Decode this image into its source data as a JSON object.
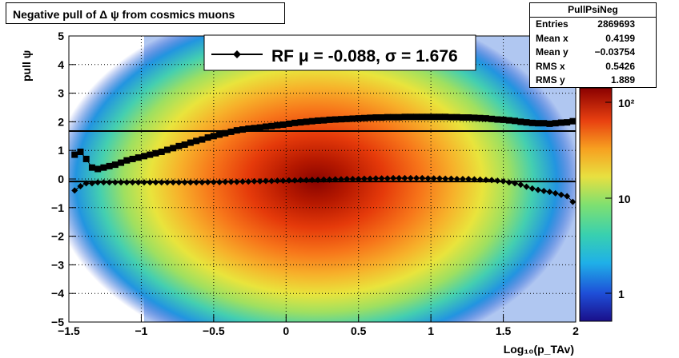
{
  "title": "Negative pull of Δ ψ from cosmics muons",
  "stats": {
    "name": "PullPsiNeg",
    "rows": [
      {
        "key": "Entries",
        "value": "2869693"
      },
      {
        "key": "Mean x",
        "value": "0.4199"
      },
      {
        "key": "Mean y",
        "value": "−0.03754"
      },
      {
        "key": "RMS x",
        "value": "0.5426"
      },
      {
        "key": "RMS y",
        "value": "1.889"
      }
    ]
  },
  "legend": {
    "label": "RF μ = -0.088, σ =   1.676"
  },
  "colors": {
    "marker": "#000000",
    "line": "#000000"
  },
  "colorbar": {
    "ticks": [
      "10²",
      "10",
      "1"
    ],
    "scale": "log",
    "palette": "rainbow"
  },
  "chart_data": {
    "type": "heatmap",
    "title": "Negative pull of Δ ψ from cosmics muons",
    "xlabel": "Log₁₀(p_TAv)",
    "ylabel": "pull ψ",
    "xlim": [
      -1.5,
      2
    ],
    "ylim": [
      -5,
      5
    ],
    "xticks": [
      "−1.5",
      "−1",
      "−0.5",
      "0",
      "0.5",
      "1",
      "1.5",
      "2"
    ],
    "yticks": [
      "−5",
      "−4",
      "−3",
      "−2",
      "−1",
      "0",
      "1",
      "2",
      "3",
      "4",
      "5"
    ],
    "grid": true,
    "legend_position": "top-center",
    "reference_lines": [
      {
        "name": "mean",
        "y": -0.088
      },
      {
        "name": "sigma",
        "y": 1.676
      }
    ],
    "series": [
      {
        "marker": "diamond",
        "x": [
          -1.46,
          -1.42,
          -1.38,
          -1.34,
          -1.3,
          -1.26,
          -1.22,
          -1.18,
          -1.14,
          -1.1,
          -1.06,
          -1.02,
          -0.98,
          -0.94,
          -0.9,
          -0.86,
          -0.82,
          -0.78,
          -0.74,
          -0.7,
          -0.66,
          -0.62,
          -0.58,
          -0.54,
          -0.5,
          -0.46,
          -0.42,
          -0.38,
          -0.34,
          -0.3,
          -0.26,
          -0.22,
          -0.18,
          -0.14,
          -0.1,
          -0.06,
          -0.02,
          0.02,
          0.06,
          0.1,
          0.14,
          0.18,
          0.22,
          0.26,
          0.3,
          0.34,
          0.38,
          0.42,
          0.46,
          0.5,
          0.54,
          0.58,
          0.62,
          0.66,
          0.7,
          0.74,
          0.78,
          0.82,
          0.86,
          0.9,
          0.94,
          0.98,
          1.02,
          1.06,
          1.1,
          1.14,
          1.18,
          1.22,
          1.26,
          1.3,
          1.34,
          1.38,
          1.42,
          1.46,
          1.5,
          1.54,
          1.58,
          1.62,
          1.66,
          1.7,
          1.74,
          1.78,
          1.82,
          1.86,
          1.9,
          1.94,
          1.98
        ],
        "values": [
          -0.4,
          -0.25,
          -0.15,
          -0.15,
          -0.12,
          -0.12,
          -0.12,
          -0.12,
          -0.12,
          -0.12,
          -0.12,
          -0.12,
          -0.12,
          -0.12,
          -0.12,
          -0.12,
          -0.12,
          -0.12,
          -0.12,
          -0.12,
          -0.12,
          -0.12,
          -0.12,
          -0.11,
          -0.11,
          -0.11,
          -0.1,
          -0.1,
          -0.1,
          -0.09,
          -0.09,
          -0.08,
          -0.08,
          -0.07,
          -0.07,
          -0.06,
          -0.06,
          -0.05,
          -0.05,
          -0.04,
          -0.04,
          -0.03,
          -0.03,
          -0.02,
          -0.02,
          -0.01,
          -0.01,
          0.0,
          0.0,
          0.0,
          0.01,
          0.01,
          0.02,
          0.02,
          0.02,
          0.03,
          0.03,
          0.03,
          0.03,
          0.03,
          0.03,
          0.02,
          0.02,
          0.02,
          0.01,
          0.01,
          0.0,
          0.0,
          0.0,
          -0.01,
          -0.02,
          -0.03,
          -0.04,
          -0.06,
          -0.08,
          -0.12,
          -0.15,
          -0.2,
          -0.27,
          -0.33,
          -0.38,
          -0.42,
          -0.45,
          -0.5,
          -0.55,
          -0.6,
          -0.8
        ]
      },
      {
        "marker": "square",
        "x": [
          -1.46,
          -1.42,
          -1.38,
          -1.34,
          -1.3,
          -1.26,
          -1.22,
          -1.18,
          -1.14,
          -1.1,
          -1.06,
          -1.02,
          -0.98,
          -0.94,
          -0.9,
          -0.86,
          -0.82,
          -0.78,
          -0.74,
          -0.7,
          -0.66,
          -0.62,
          -0.58,
          -0.54,
          -0.5,
          -0.46,
          -0.42,
          -0.38,
          -0.34,
          -0.3,
          -0.26,
          -0.22,
          -0.18,
          -0.14,
          -0.1,
          -0.06,
          -0.02,
          0.02,
          0.06,
          0.1,
          0.14,
          0.18,
          0.22,
          0.26,
          0.3,
          0.34,
          0.38,
          0.42,
          0.46,
          0.5,
          0.54,
          0.58,
          0.62,
          0.66,
          0.7,
          0.74,
          0.78,
          0.82,
          0.86,
          0.9,
          0.94,
          0.98,
          1.02,
          1.06,
          1.1,
          1.14,
          1.18,
          1.22,
          1.26,
          1.3,
          1.34,
          1.38,
          1.42,
          1.46,
          1.5,
          1.54,
          1.58,
          1.62,
          1.66,
          1.7,
          1.74,
          1.78,
          1.82,
          1.86,
          1.9,
          1.94,
          1.98
        ],
        "values": [
          0.85,
          0.95,
          0.7,
          0.4,
          0.35,
          0.4,
          0.45,
          0.5,
          0.57,
          0.65,
          0.7,
          0.75,
          0.8,
          0.85,
          0.9,
          0.95,
          1.02,
          1.08,
          1.15,
          1.2,
          1.27,
          1.33,
          1.38,
          1.45,
          1.5,
          1.55,
          1.6,
          1.65,
          1.7,
          1.73,
          1.76,
          1.78,
          1.8,
          1.83,
          1.85,
          1.88,
          1.9,
          1.93,
          1.96,
          1.98,
          2.0,
          2.02,
          2.04,
          2.05,
          2.07,
          2.08,
          2.09,
          2.1,
          2.11,
          2.12,
          2.13,
          2.14,
          2.15,
          2.15,
          2.16,
          2.16,
          2.16,
          2.17,
          2.17,
          2.17,
          2.17,
          2.17,
          2.17,
          2.17,
          2.17,
          2.16,
          2.16,
          2.15,
          2.15,
          2.14,
          2.13,
          2.12,
          2.1,
          2.08,
          2.07,
          2.05,
          2.03,
          2.0,
          1.98,
          1.96,
          1.95,
          1.95,
          1.93,
          1.95,
          1.97,
          1.98,
          2.02
        ]
      }
    ]
  }
}
